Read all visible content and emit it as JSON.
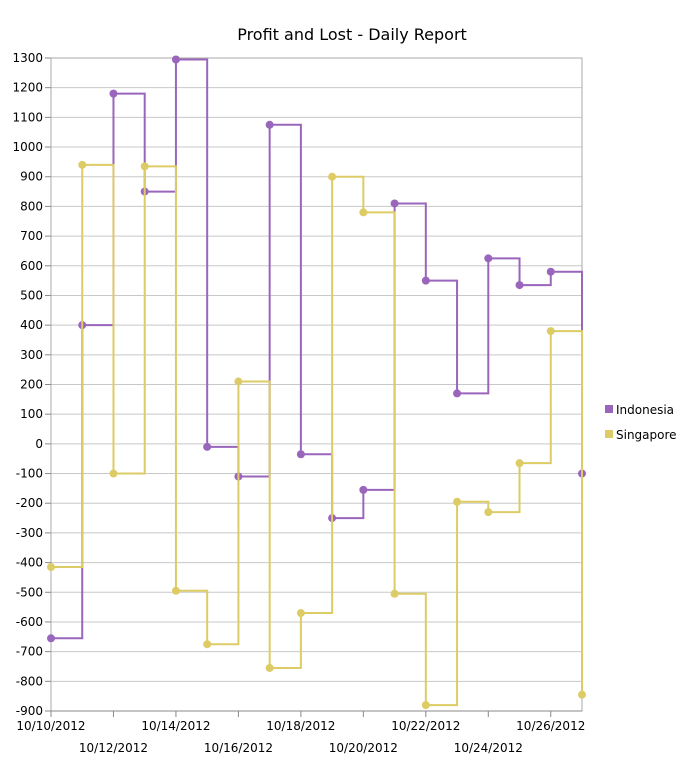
{
  "chart_data": {
    "type": "line",
    "step": true,
    "title": "Profit and Lost - Daily Report",
    "xlabel": "",
    "ylabel": "",
    "ylim": [
      -900,
      1300
    ],
    "yticks": [
      -900,
      -800,
      -700,
      -600,
      -500,
      -400,
      -300,
      -200,
      -100,
      0,
      100,
      200,
      300,
      400,
      500,
      600,
      700,
      800,
      900,
      1000,
      1100,
      1200,
      1300
    ],
    "grid": true,
    "legend_position": "right",
    "x": [
      "10/10/2012",
      "10/11/2012",
      "10/12/2012",
      "10/13/2012",
      "10/14/2012",
      "10/15/2012",
      "10/16/2012",
      "10/17/2012",
      "10/18/2012",
      "10/19/2012",
      "10/20/2012",
      "10/21/2012",
      "10/22/2012",
      "10/23/2012",
      "10/24/2012",
      "10/25/2012",
      "10/26/2012",
      "10/27/2012"
    ],
    "x_tick_labels_row1": [
      "10/10/2012",
      "10/14/2012",
      "10/18/2012",
      "10/22/2012",
      "10/26/2012"
    ],
    "x_tick_labels_row2": [
      "10/12/2012",
      "10/16/2012",
      "10/20/2012",
      "10/24/2012"
    ],
    "series": [
      {
        "name": "Indonesia",
        "color": "#9966bb",
        "values": [
          -655,
          400,
          1180,
          850,
          1295,
          -10,
          -110,
          1075,
          -35,
          -250,
          -155,
          810,
          550,
          170,
          625,
          535,
          580,
          -100
        ]
      },
      {
        "name": "Singapore",
        "color": "#ddcc66",
        "values": [
          -415,
          940,
          -100,
          935,
          -495,
          -675,
          210,
          -755,
          -570,
          900,
          780,
          -505,
          -880,
          -195,
          -230,
          -65,
          380,
          -845
        ]
      }
    ]
  }
}
